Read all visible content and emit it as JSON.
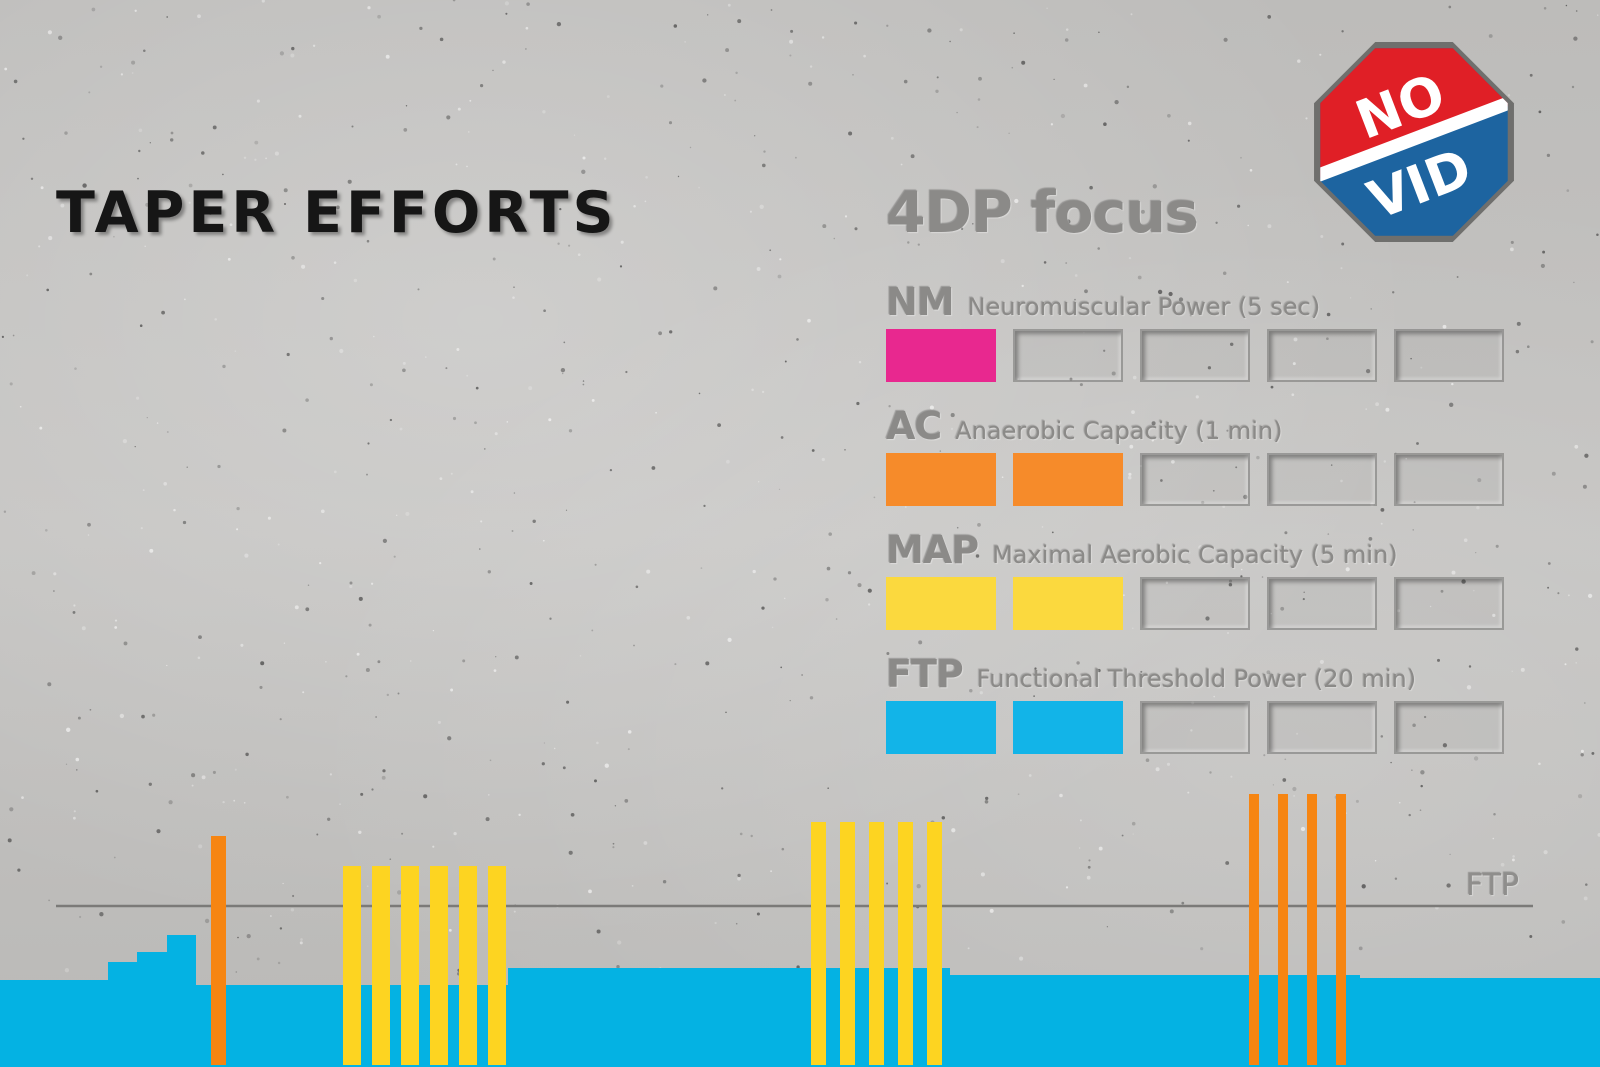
{
  "title": "TAPER EFFORTS",
  "focus": {
    "title": "4DP focus",
    "box_count": 5,
    "rows": [
      {
        "abbr": "NM",
        "name": "Neuromuscular Power (5 sec)",
        "filled": 1,
        "color": "#e8288f"
      },
      {
        "abbr": "AC",
        "name": "Anaerobic Capacity (1 min)",
        "filled": 2,
        "color": "#f68b2a"
      },
      {
        "abbr": "MAP",
        "name": "Maximal Aerobic Capacity (5 min)",
        "filled": 2,
        "color": "#fbd93e"
      },
      {
        "abbr": "FTP",
        "name": "Functional Threshold Power (20 min)",
        "filled": 2,
        "color": "#12b4e8"
      }
    ]
  },
  "logo": {
    "top_text": "NO",
    "bottom_text": "VID",
    "top_color": "#e01f26",
    "bottom_color": "#1d64a0"
  },
  "workout": {
    "ftp_label": "FTP",
    "colors": {
      "base": "#04b2e3",
      "map": "#fdd421",
      "ac": "#f68512"
    }
  }
}
